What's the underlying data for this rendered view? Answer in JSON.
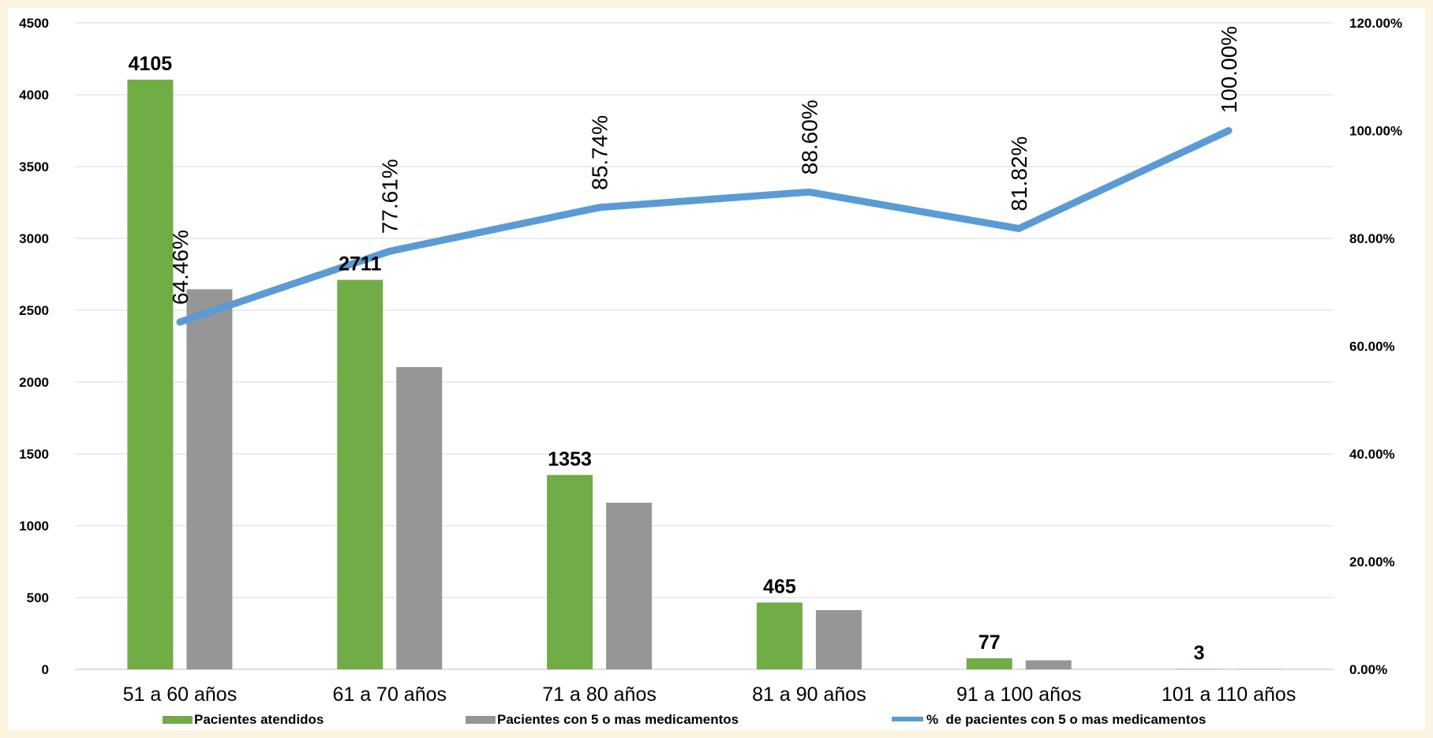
{
  "chart_data": {
    "type": "bar",
    "categories": [
      "51 a 60 años",
      "61 a 70 años",
      "71 a 80 años",
      "81 a 90 años",
      "91 a 100 años",
      "101 a 110 años"
    ],
    "series": [
      {
        "name": "Pacientes atendidos",
        "type": "bar",
        "axis": "left",
        "color": "#70ad47",
        "values": [
          4105,
          2711,
          1353,
          465,
          77,
          3
        ],
        "data_labels": [
          "4105",
          "2711",
          "1353",
          "465",
          "77",
          "3"
        ]
      },
      {
        "name": "Pacientes con 5 o mas medicamentos",
        "type": "bar",
        "axis": "left",
        "color": "#969696",
        "values": [
          2646,
          2104,
          1160,
          412,
          63,
          3
        ]
      },
      {
        "name": "%  de pacientes con 5 o mas medicamentos",
        "type": "line",
        "axis": "right",
        "color": "#5b9bd5",
        "values": [
          64.46,
          77.61,
          85.74,
          88.6,
          81.82,
          100.0
        ],
        "data_labels": [
          "64.46%",
          "77.61%",
          "85.74%",
          "88.60%",
          "81.82%",
          "100.00%"
        ]
      }
    ],
    "y_left": {
      "range": [
        0,
        4500
      ],
      "ticks": [
        0,
        500,
        1000,
        1500,
        2000,
        2500,
        3000,
        3500,
        4000,
        4500
      ],
      "tick_labels": [
        "0",
        "500",
        "1000",
        "1500",
        "2000",
        "2500",
        "3000",
        "3500",
        "4000",
        "4500"
      ]
    },
    "y_right": {
      "range": [
        0,
        120
      ],
      "ticks": [
        0,
        20,
        40,
        60,
        80,
        100,
        120
      ],
      "tick_labels": [
        "0.00%",
        "20.00%",
        "40.00%",
        "60.00%",
        "80.00%",
        "100.00%",
        "120.00%"
      ]
    },
    "grid": true,
    "legend": "bottom"
  }
}
